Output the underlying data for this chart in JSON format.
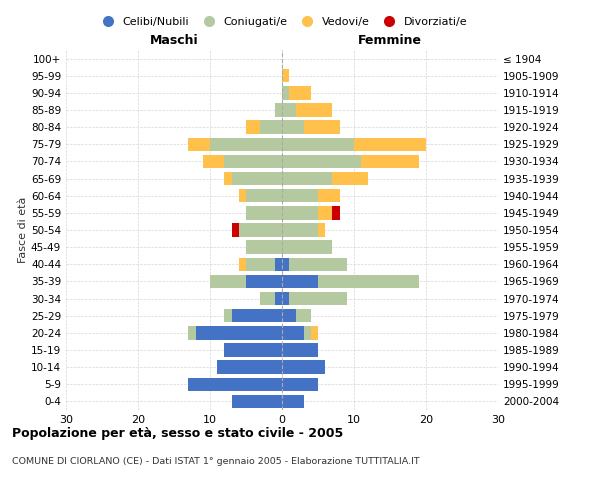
{
  "age_groups": [
    "0-4",
    "5-9",
    "10-14",
    "15-19",
    "20-24",
    "25-29",
    "30-34",
    "35-39",
    "40-44",
    "45-49",
    "50-54",
    "55-59",
    "60-64",
    "65-69",
    "70-74",
    "75-79",
    "80-84",
    "85-89",
    "90-94",
    "95-99",
    "100+"
  ],
  "birth_years": [
    "2000-2004",
    "1995-1999",
    "1990-1994",
    "1985-1989",
    "1980-1984",
    "1975-1979",
    "1970-1974",
    "1965-1969",
    "1960-1964",
    "1955-1959",
    "1950-1954",
    "1945-1949",
    "1940-1944",
    "1935-1939",
    "1930-1934",
    "1925-1929",
    "1920-1924",
    "1915-1919",
    "1910-1914",
    "1905-1909",
    "≤ 1904"
  ],
  "male": {
    "celibi": [
      7,
      13,
      9,
      8,
      12,
      7,
      1,
      5,
      1,
      0,
      0,
      0,
      0,
      0,
      0,
      0,
      0,
      0,
      0,
      0,
      0
    ],
    "coniugati": [
      0,
      0,
      0,
      0,
      1,
      1,
      2,
      5,
      4,
      5,
      6,
      5,
      5,
      7,
      8,
      10,
      3,
      1,
      0,
      0,
      0
    ],
    "vedovi": [
      0,
      0,
      0,
      0,
      0,
      0,
      0,
      0,
      1,
      0,
      0,
      0,
      1,
      1,
      3,
      3,
      2,
      0,
      0,
      0,
      0
    ],
    "divorziati": [
      0,
      0,
      0,
      0,
      0,
      0,
      0,
      0,
      0,
      0,
      1,
      0,
      0,
      0,
      0,
      0,
      0,
      0,
      0,
      0,
      0
    ]
  },
  "female": {
    "nubili": [
      3,
      5,
      6,
      5,
      3,
      2,
      1,
      5,
      1,
      0,
      0,
      0,
      0,
      0,
      0,
      0,
      0,
      0,
      0,
      0,
      0
    ],
    "coniugate": [
      0,
      0,
      0,
      0,
      1,
      2,
      8,
      14,
      8,
      7,
      5,
      5,
      5,
      7,
      11,
      10,
      3,
      2,
      1,
      0,
      0
    ],
    "vedove": [
      0,
      0,
      0,
      0,
      1,
      0,
      0,
      0,
      0,
      0,
      1,
      2,
      3,
      5,
      8,
      10,
      5,
      5,
      3,
      1,
      0
    ],
    "divorziate": [
      0,
      0,
      0,
      0,
      0,
      0,
      0,
      0,
      0,
      0,
      0,
      1,
      0,
      0,
      0,
      0,
      0,
      0,
      0,
      0,
      0
    ]
  },
  "colors": {
    "celibi_nubili": "#4472c4",
    "coniugati": "#b5c9a0",
    "vedovi": "#ffc04c",
    "divorziati": "#cc0000"
  },
  "xlim": 30,
  "title": "Popolazione per età, sesso e stato civile - 2005",
  "subtitle": "COMUNE DI CIORLANO (CE) - Dati ISTAT 1° gennaio 2005 - Elaborazione TUTTITALIA.IT",
  "ylabel_left": "Fasce di età",
  "xlabel_male": "Maschi",
  "xlabel_female": "Femmine"
}
